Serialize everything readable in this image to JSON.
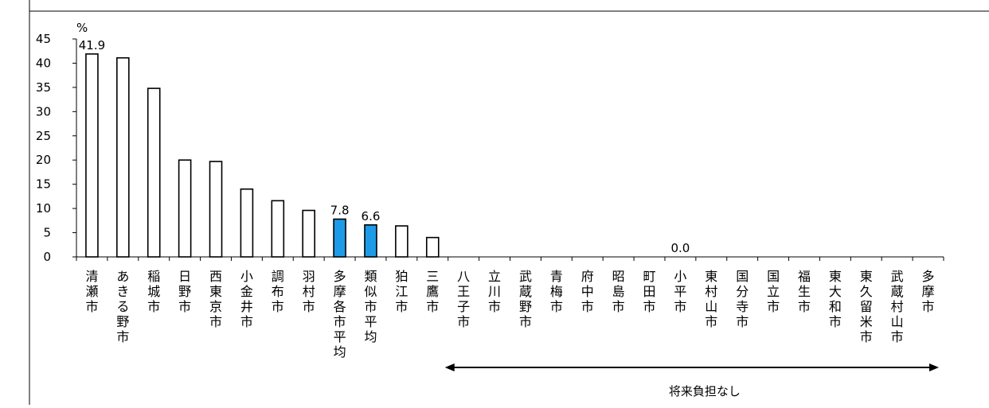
{
  "chart_data": {
    "type": "bar",
    "unit_label": "%",
    "ylim": [
      0,
      45
    ],
    "yticks": [
      0,
      5,
      10,
      15,
      20,
      25,
      30,
      35,
      40,
      45
    ],
    "grid": false,
    "categories": [
      "清瀬市",
      "あきる野市",
      "稲城市",
      "日野市",
      "西東京市",
      "小金井市",
      "調布市",
      "羽村市",
      "多摩各市平均",
      "類似市平均",
      "狛江市",
      "三鷹市",
      "八王子市",
      "立川市",
      "武蔵野市",
      "青梅市",
      "府中市",
      "昭島市",
      "町田市",
      "小平市",
      "東村山市",
      "国分寺市",
      "国立市",
      "福生市",
      "東大和市",
      "東久留米市",
      "武蔵村山市",
      "多摩市"
    ],
    "values": [
      41.9,
      41.1,
      34.8,
      20.0,
      19.7,
      14.0,
      11.6,
      9.6,
      7.8,
      6.6,
      6.4,
      4.0,
      0,
      0,
      0,
      0,
      0,
      0,
      0,
      0,
      0,
      0,
      0,
      0,
      0,
      0,
      0,
      0
    ],
    "highlight": [
      8,
      9
    ],
    "colors": {
      "bar_fill": "#ffffff",
      "highlight_fill": "#1e9be8",
      "stroke": "#000000"
    },
    "data_labels": [
      {
        "index": 0,
        "text": "41.9"
      },
      {
        "index": 8,
        "text": "7.8"
      },
      {
        "index": 9,
        "text": "6.6"
      },
      {
        "index": 19,
        "text": "0.0"
      }
    ],
    "range_annotation": {
      "from_index": 12,
      "to_index": 27,
      "text": "将来負担なし"
    }
  }
}
